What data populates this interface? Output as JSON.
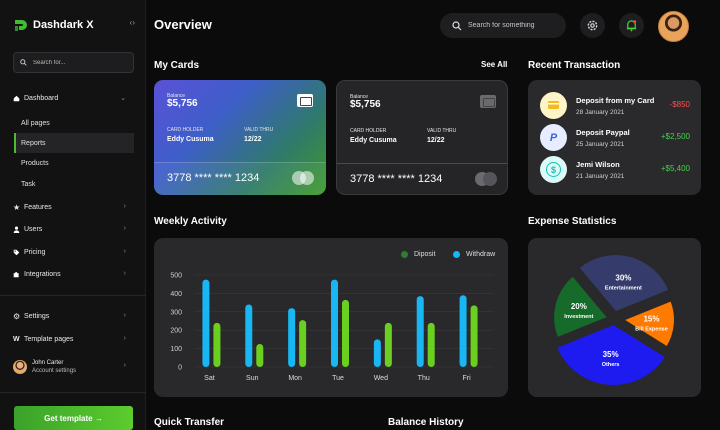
{
  "app": {
    "name": "Dashdark X",
    "collapse_icon": "collapse-arrows-icon"
  },
  "sidebar": {
    "search_placeholder": "Search for...",
    "dashboard": {
      "label": "Dashboard",
      "icon": "home-icon"
    },
    "sub_items": [
      {
        "label": "All pages",
        "active": false
      },
      {
        "label": "Reports",
        "active": true
      },
      {
        "label": "Products",
        "active": false
      },
      {
        "label": "Task",
        "active": false
      }
    ],
    "items": [
      {
        "label": "Features",
        "icon": "star-icon"
      },
      {
        "label": "Users",
        "icon": "users-icon"
      },
      {
        "label": "Pricing",
        "icon": "tag-icon"
      },
      {
        "label": "Integrations",
        "icon": "puzzle-icon"
      }
    ],
    "bottom_items": [
      {
        "label": "Settings",
        "icon": "gear-icon"
      },
      {
        "label": "Template pages",
        "icon": "template-icon"
      }
    ],
    "user": {
      "name": "John Carter",
      "subtitle": "Account settings"
    },
    "cta_label": "Get template →"
  },
  "header": {
    "title": "Overview",
    "search_placeholder": "Search for something"
  },
  "cards": {
    "title": "My Cards",
    "see_all": "See All",
    "items": [
      {
        "balance_label": "Balance",
        "balance": "$5,756",
        "holder_label": "CARD HOLDER",
        "holder": "Eddy Cusuma",
        "valid_label": "VALID THRU",
        "valid": "12/22",
        "number": "3778 **** **** 1234"
      },
      {
        "balance_label": "Balance",
        "balance": "$5,756",
        "holder_label": "CARD HOLDER",
        "holder": "Eddy Cusuma",
        "valid_label": "VALID THRU",
        "valid": "12/22",
        "number": "3778 **** **** 1234"
      }
    ]
  },
  "transactions": {
    "title": "Recent Transaction",
    "items": [
      {
        "name": "Deposit from my Card",
        "date": "28 January 2021",
        "amount": "-$850",
        "icon": "card-icon",
        "icon_bg": "#fff3c8",
        "amount_color": "#ff4b4b"
      },
      {
        "name": "Deposit Paypal",
        "date": "25 January 2021",
        "amount": "+$2,500",
        "icon": "paypal-icon",
        "icon_bg": "#e7edff",
        "amount_color": "#41d447"
      },
      {
        "name": "Jemi Wilson",
        "date": "21 January 2021",
        "amount": "+$5,400",
        "icon": "dollar-icon",
        "icon_bg": "#dcfaf8",
        "amount_color": "#41d447"
      }
    ]
  },
  "activity": {
    "title": "Weekly Activity",
    "legend": [
      {
        "label": "Diposit",
        "color": "#2e7d32"
      },
      {
        "label": "Withdraw",
        "color": "#18b6f2"
      }
    ]
  },
  "expense": {
    "title": "Expense Statistics"
  },
  "bottom": {
    "quick_transfer": "Quick Transfer",
    "balance_history": "Balance History"
  },
  "chart_data": [
    {
      "type": "bar",
      "categories": [
        "Sat",
        "Sun",
        "Mon",
        "Tue",
        "Wed",
        "Thu",
        "Fri"
      ],
      "series": [
        {
          "name": "Withdraw",
          "color": "#18b6f2",
          "values": [
            475,
            340,
            320,
            475,
            150,
            385,
            390
          ]
        },
        {
          "name": "Diposit",
          "color": "#6bcf1f",
          "values": [
            240,
            125,
            255,
            365,
            240,
            240,
            335
          ]
        }
      ],
      "ylim": [
        0,
        500
      ],
      "yticks": [
        0,
        100,
        200,
        300,
        400,
        500
      ],
      "grid": true,
      "legend_position": "top-right"
    },
    {
      "type": "pie",
      "slices": [
        {
          "label": "Entertainment",
          "value": 30,
          "display": "30%",
          "color": "#353c6b"
        },
        {
          "label": "Bill Expense",
          "value": 15,
          "display": "15%",
          "color": "#ff7a00"
        },
        {
          "label": "Others",
          "value": 35,
          "display": "35%",
          "color": "#1d1bf0"
        },
        {
          "label": "Investment",
          "value": 20,
          "display": "20%",
          "color": "#166a2a"
        }
      ]
    }
  ]
}
